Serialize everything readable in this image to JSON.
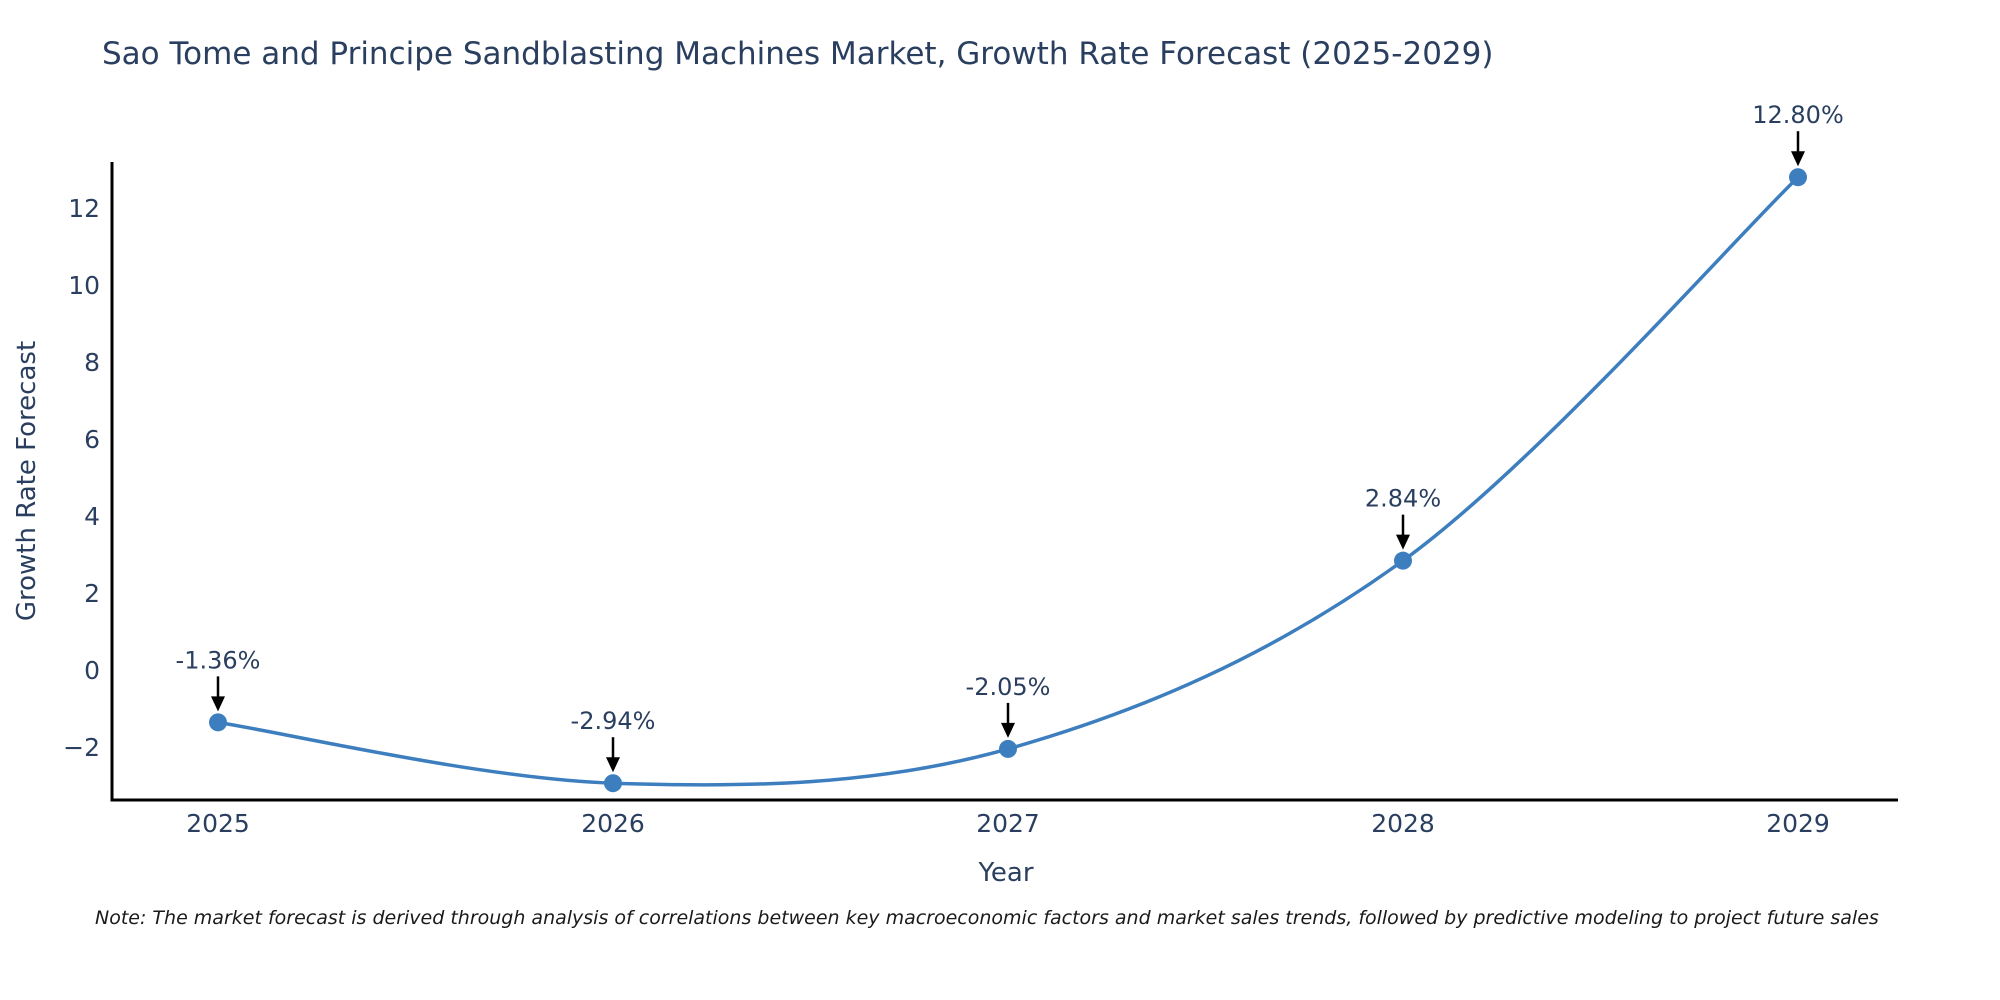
{
  "chart_data": {
    "type": "line",
    "title": "Sao Tome and Principe Sandblasting Machines Market, Growth Rate Forecast (2025-2029)",
    "xlabel": "Year",
    "ylabel": "Growth Rate Forecast",
    "x": [
      2025,
      2026,
      2027,
      2028,
      2029
    ],
    "xtick_labels": [
      "2025",
      "2026",
      "2027",
      "2028",
      "2029"
    ],
    "series": [
      {
        "name": "Growth Rate Forecast",
        "values": [
          -1.36,
          -2.94,
          -2.05,
          2.84,
          12.8
        ],
        "point_labels": [
          "-1.36%",
          "-2.94%",
          "-2.05%",
          "2.84%",
          "12.80%"
        ]
      }
    ],
    "yticks": [
      -2,
      0,
      2,
      4,
      6,
      8,
      10,
      12
    ],
    "ytick_labels": [
      "−2",
      "0",
      "2",
      "4",
      "6",
      "8",
      "10",
      "12"
    ],
    "ylim": [
      -3.4,
      13.2
    ],
    "grid": false,
    "legend": "none",
    "line_smooth": true,
    "colors": {
      "line": "#3d7ebf",
      "marker": "#3d7ebf",
      "axis_line": "#000000",
      "tick_label": "#2a3f5f",
      "annotation_text": "#2a3f5f",
      "annotation_arrow": "#000000",
      "title": "#2a3f5f",
      "background": "#ffffff"
    }
  },
  "note": "Note: The market forecast is derived through analysis of correlations between key macroeconomic factors and market sales trends, followed by predictive modeling to project future sales"
}
